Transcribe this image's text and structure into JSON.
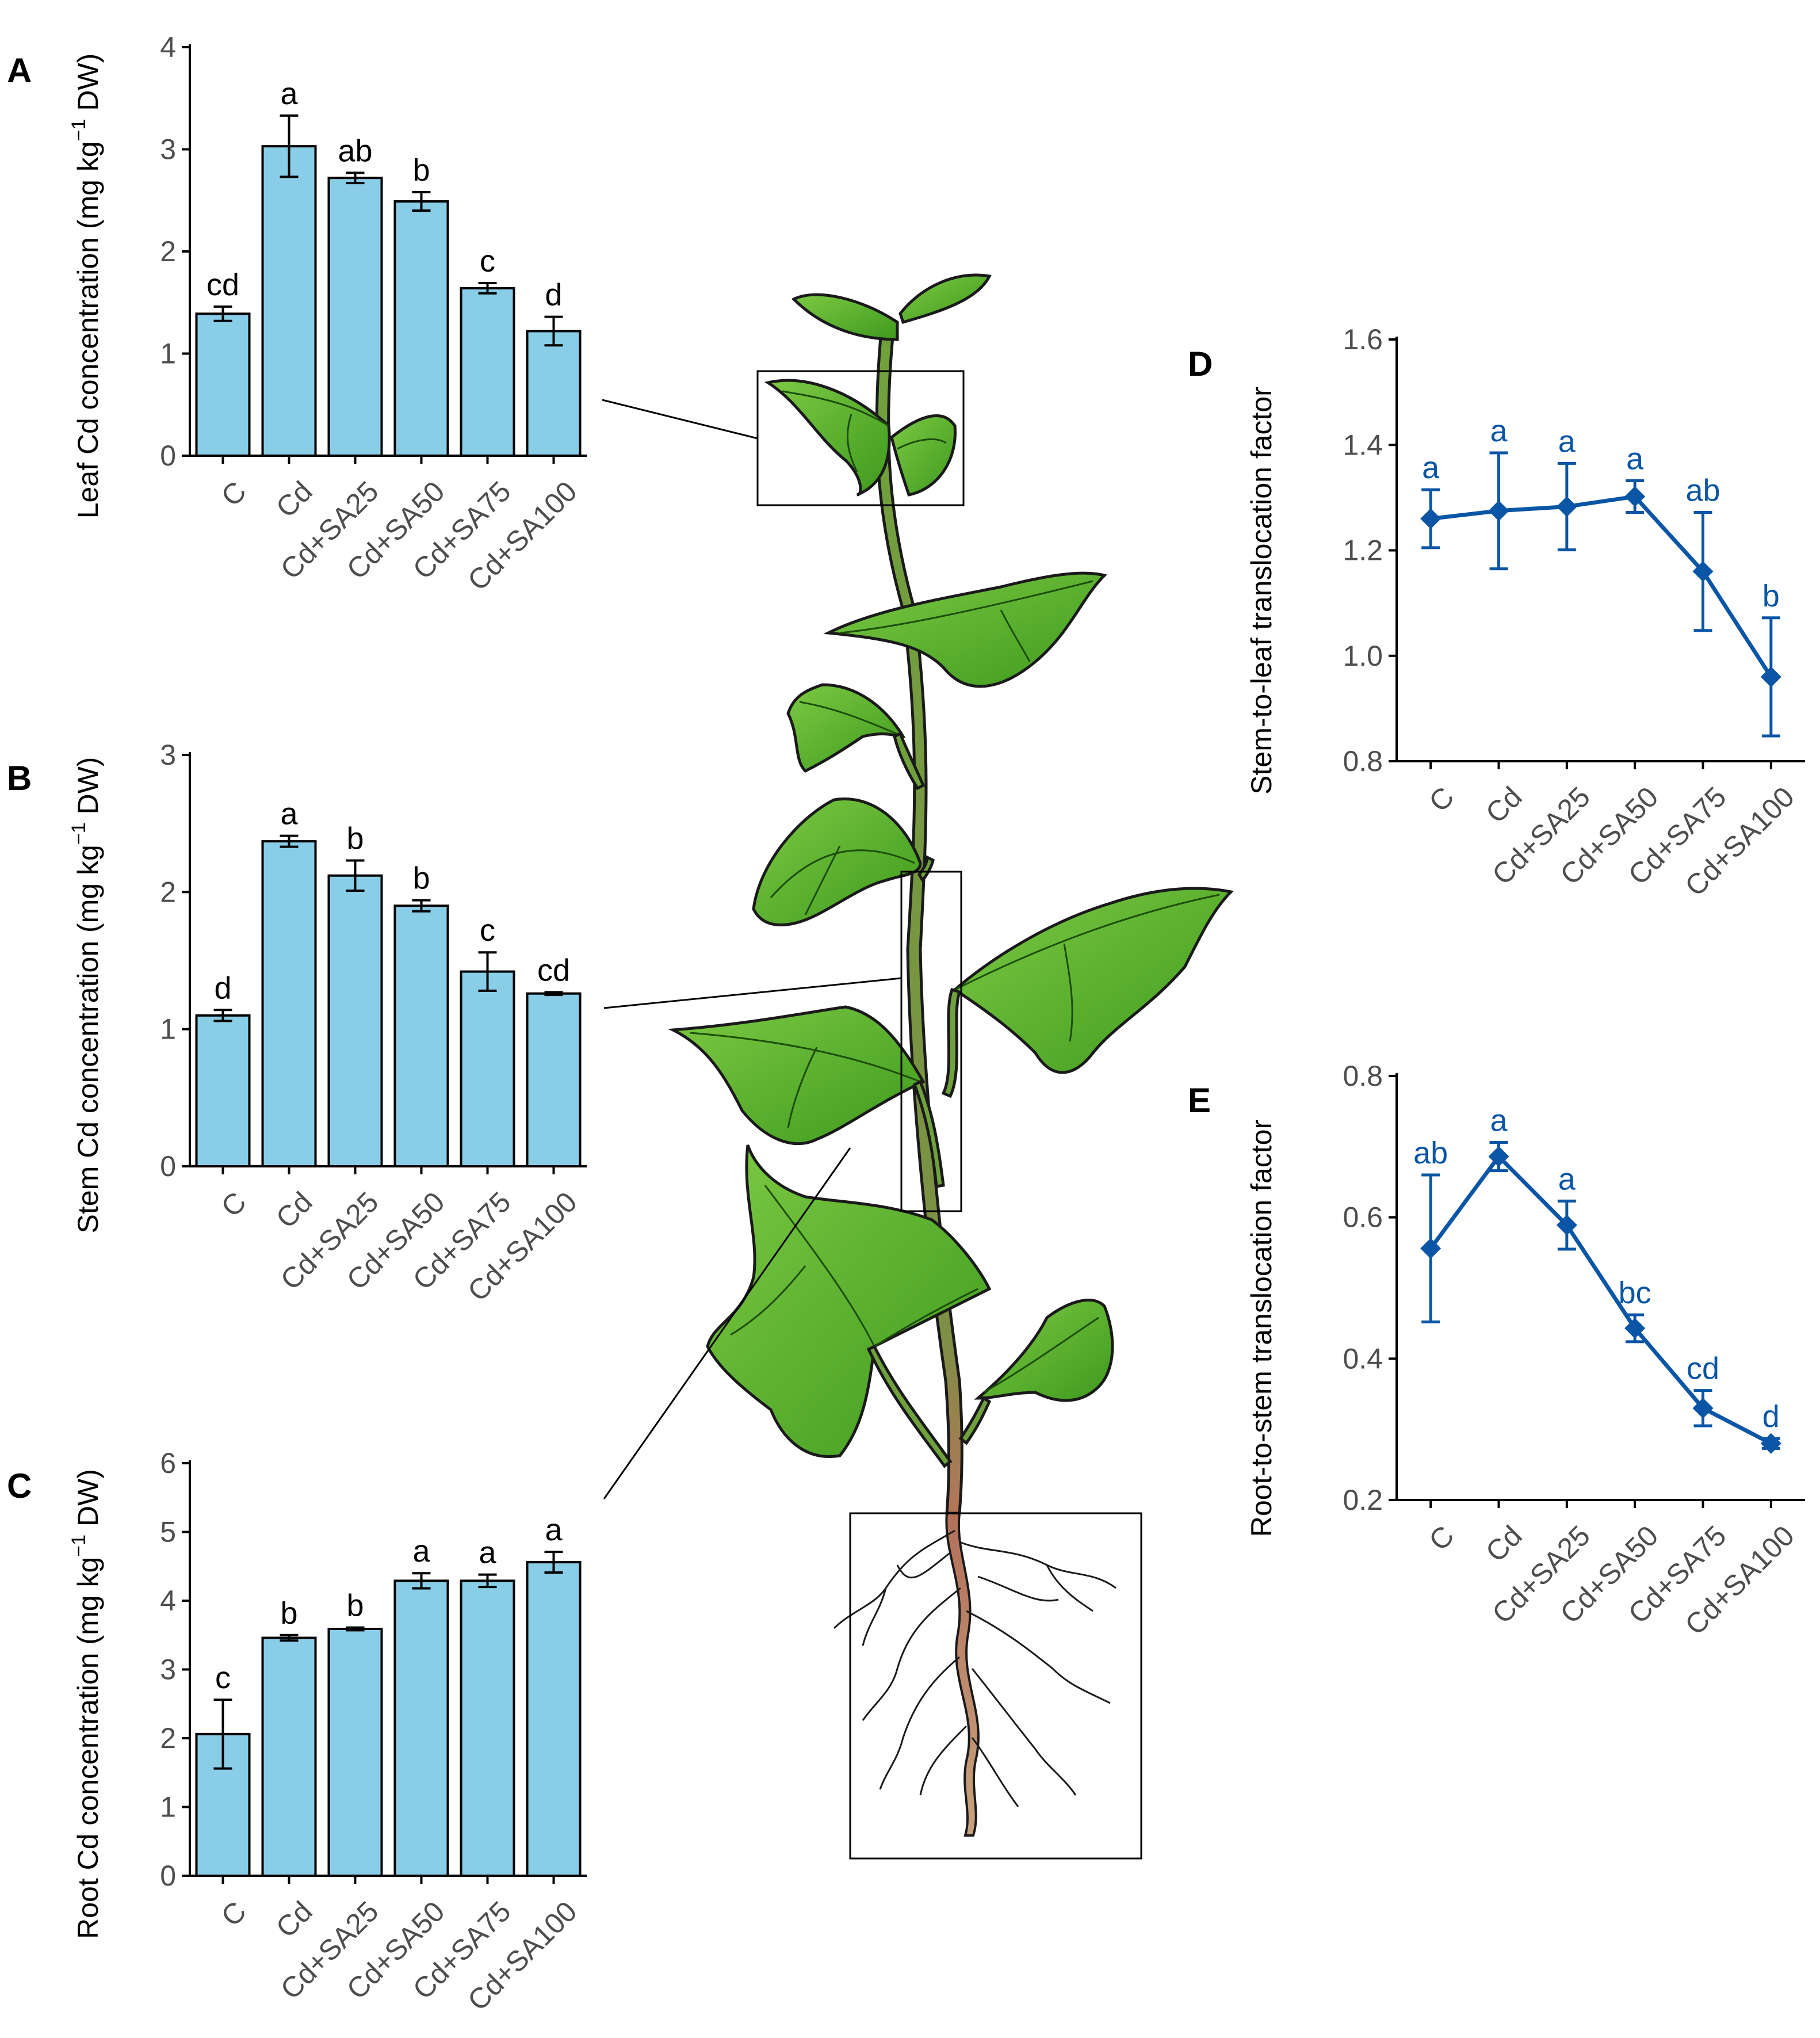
{
  "colors": {
    "bar_fill": "#89cde6",
    "bar_stroke": "#000000",
    "line_series": "#0a55a5",
    "axis": "#000000",
    "tick_text": "#4d4d4d",
    "leaf_green": "#4ea82a",
    "leaf_dark": "#2f7d16",
    "stem_green": "#6b9a3c",
    "root_brown": "#b07a55"
  },
  "illustration": {
    "subject": "plant",
    "callout_boxes": [
      "leaf",
      "stem",
      "root"
    ]
  },
  "chart_data": [
    {
      "id": "A",
      "panel_letter": "A",
      "type": "bar",
      "categories": [
        "C",
        "Cd",
        "Cd+SA25",
        "Cd+SA50",
        "Cd+SA75",
        "Cd+SA100"
      ],
      "values": [
        1.39,
        3.03,
        2.72,
        2.49,
        1.64,
        1.22
      ],
      "errors": [
        0.07,
        0.3,
        0.05,
        0.09,
        0.05,
        0.14
      ],
      "significance": [
        "cd",
        "a",
        "ab",
        "b",
        "c",
        "d"
      ],
      "ylabel_parts": [
        "Leaf Cd concentration (mg  kg",
        "−1",
        " DW)"
      ],
      "yticks": [
        0,
        1,
        2,
        3,
        4
      ],
      "ylim": [
        0,
        4
      ],
      "title": "",
      "xlabel": ""
    },
    {
      "id": "B",
      "panel_letter": "B",
      "type": "bar",
      "categories": [
        "C",
        "Cd",
        "Cd+SA25",
        "Cd+SA50",
        "Cd+SA75",
        "Cd+SA100"
      ],
      "values": [
        1.1,
        2.37,
        2.12,
        1.9,
        1.42,
        1.26
      ],
      "errors": [
        0.04,
        0.04,
        0.11,
        0.04,
        0.14,
        0.01
      ],
      "significance": [
        "d",
        "a",
        "b",
        "b",
        "c",
        "cd"
      ],
      "ylabel_parts": [
        "Stem Cd concentration (mg  kg",
        "−1",
        " DW)"
      ],
      "yticks": [
        0,
        1,
        2,
        3
      ],
      "ylim": [
        0,
        3
      ],
      "title": "",
      "xlabel": ""
    },
    {
      "id": "C",
      "panel_letter": "C",
      "type": "bar",
      "categories": [
        "C",
        "Cd",
        "Cd+SA25",
        "Cd+SA50",
        "Cd+SA75",
        "Cd+SA100"
      ],
      "values": [
        2.06,
        3.46,
        3.59,
        4.29,
        4.29,
        4.56
      ],
      "errors": [
        0.5,
        0.04,
        0.02,
        0.11,
        0.09,
        0.15
      ],
      "significance": [
        "c",
        "b",
        "b",
        "a",
        "a",
        "a"
      ],
      "ylabel_parts": [
        "Root Cd concentration (mg  kg",
        "−1",
        " DW)"
      ],
      "yticks": [
        0,
        1,
        2,
        3,
        4,
        5,
        6
      ],
      "ylim": [
        0,
        6
      ],
      "title": "",
      "xlabel": ""
    },
    {
      "id": "D",
      "panel_letter": "D",
      "type": "line",
      "categories": [
        "C",
        "Cd",
        "Cd+SA25",
        "Cd+SA50",
        "Cd+SA75",
        "Cd+SA100"
      ],
      "values": [
        1.26,
        1.275,
        1.283,
        1.302,
        1.16,
        0.96
      ],
      "errors": [
        0.055,
        0.11,
        0.082,
        0.03,
        0.112,
        0.112
      ],
      "significance": [
        "a",
        "a",
        "a",
        "a",
        "ab",
        "b"
      ],
      "ylabel": "Stem-to-leaf translocation factor",
      "yticks": [
        0.8,
        1.0,
        1.2,
        1.4,
        1.6
      ],
      "ytick_labels": [
        "0.8",
        "1.0",
        "1.2",
        "1.4",
        "1.6"
      ],
      "ylim": [
        0.8,
        1.6
      ],
      "title": "",
      "xlabel": ""
    },
    {
      "id": "E",
      "panel_letter": "E",
      "type": "line",
      "categories": [
        "C",
        "Cd",
        "Cd+SA25",
        "Cd+SA50",
        "Cd+SA75",
        "Cd+SA100"
      ],
      "values": [
        0.556,
        0.686,
        0.589,
        0.443,
        0.33,
        0.28
      ],
      "errors": [
        0.104,
        0.02,
        0.034,
        0.019,
        0.025,
        0.007
      ],
      "significance": [
        "ab",
        "a",
        "a",
        "bc",
        "cd",
        "d"
      ],
      "ylabel": "Root-to-stem translocation factor",
      "yticks": [
        0.2,
        0.4,
        0.6,
        0.8
      ],
      "ytick_labels": [
        "0.2",
        "0.4",
        "0.6",
        "0.8"
      ],
      "ylim": [
        0.2,
        0.8
      ],
      "title": "",
      "xlabel": ""
    }
  ]
}
